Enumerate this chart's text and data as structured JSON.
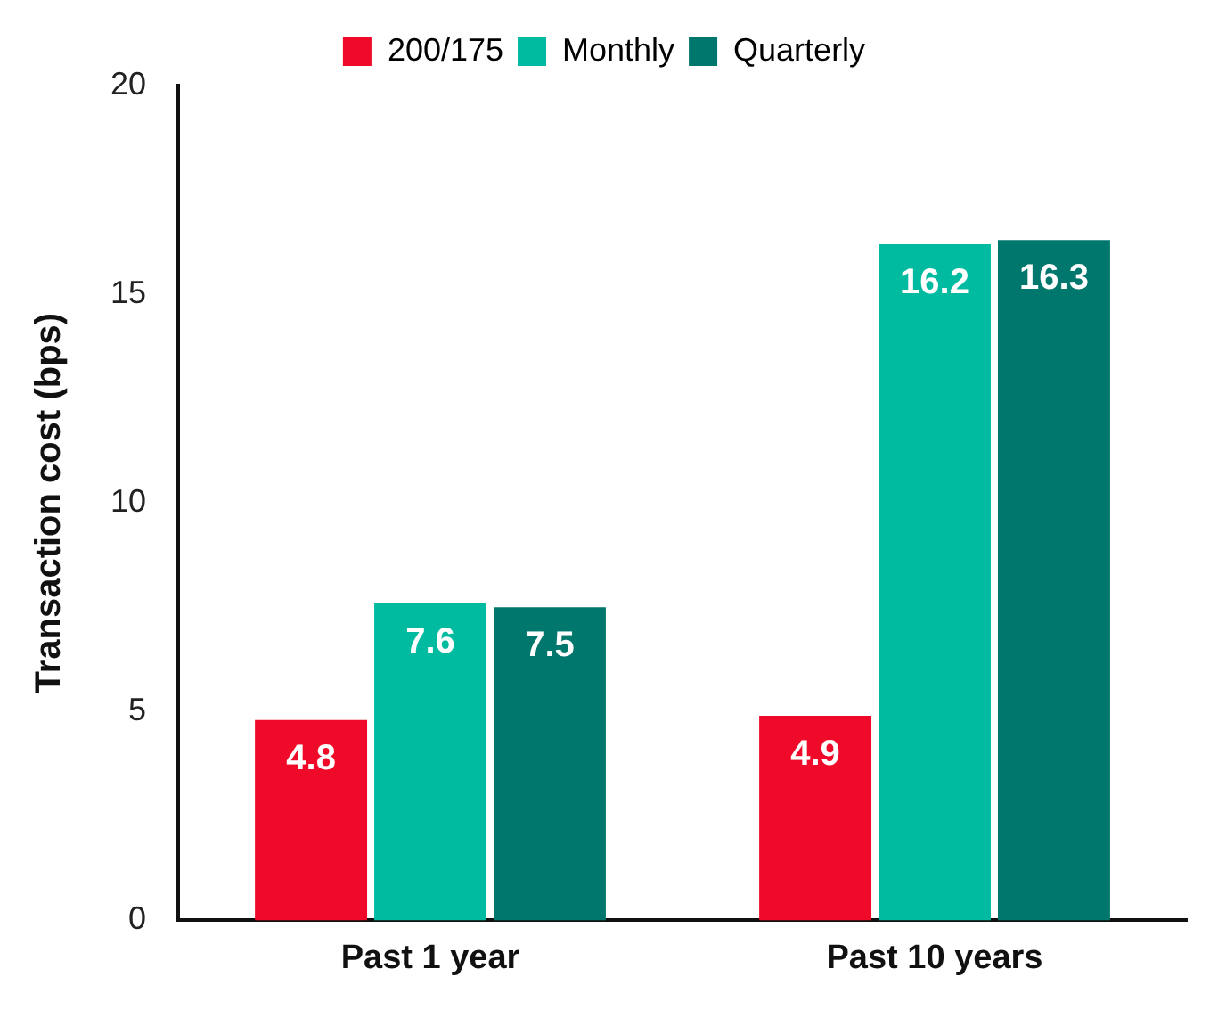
{
  "chart_data": {
    "type": "bar",
    "ylabel": "Transaction cost (bps)",
    "categories": [
      "Past 1 year",
      "Past 10 years"
    ],
    "series": [
      {
        "name": "200/175",
        "color": "#ee0a28",
        "values": [
          4.8,
          4.9
        ]
      },
      {
        "name": "Monthly",
        "color": "#00bba0",
        "values": [
          7.6,
          16.2
        ]
      },
      {
        "name": "Quarterly",
        "color": "#00776d",
        "values": [
          7.5,
          16.3
        ]
      }
    ],
    "ylim": [
      0,
      20
    ],
    "yticks": [
      0,
      5,
      10,
      15,
      20
    ],
    "grid": false,
    "legend": "top",
    "data_labels": true
  }
}
